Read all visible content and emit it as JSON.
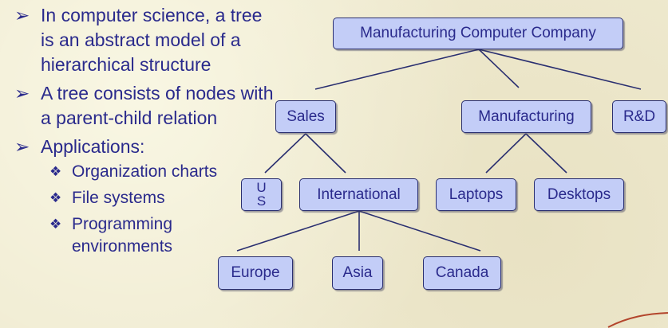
{
  "bullets": [
    {
      "marker": "➢",
      "text": "In computer science, a tree is an abstract model of a hierarchical structure"
    },
    {
      "marker": "➢",
      "text": "A tree consists of nodes with a parent-child relation"
    },
    {
      "marker": "➢",
      "text": "Applications:",
      "sub": [
        {
          "marker": "❖",
          "text": "Organization charts"
        },
        {
          "marker": "❖",
          "text": "File systems"
        },
        {
          "marker": "❖",
          "text": "Programming environments"
        }
      ]
    }
  ],
  "tree": {
    "root": "Manufacturing Computer Company",
    "sales": "Sales",
    "manufacturing": "Manufacturing",
    "rd": "R&D",
    "us": "US",
    "international": "International",
    "laptops": "Laptops",
    "desktops": "Desktops",
    "europe": "Europe",
    "asia": "Asia",
    "canada": "Canada"
  },
  "colors": {
    "background": "#efead0",
    "text": "#2a2a8c",
    "node_fill": "#c3cdf7",
    "node_border": "#2a2f70"
  }
}
